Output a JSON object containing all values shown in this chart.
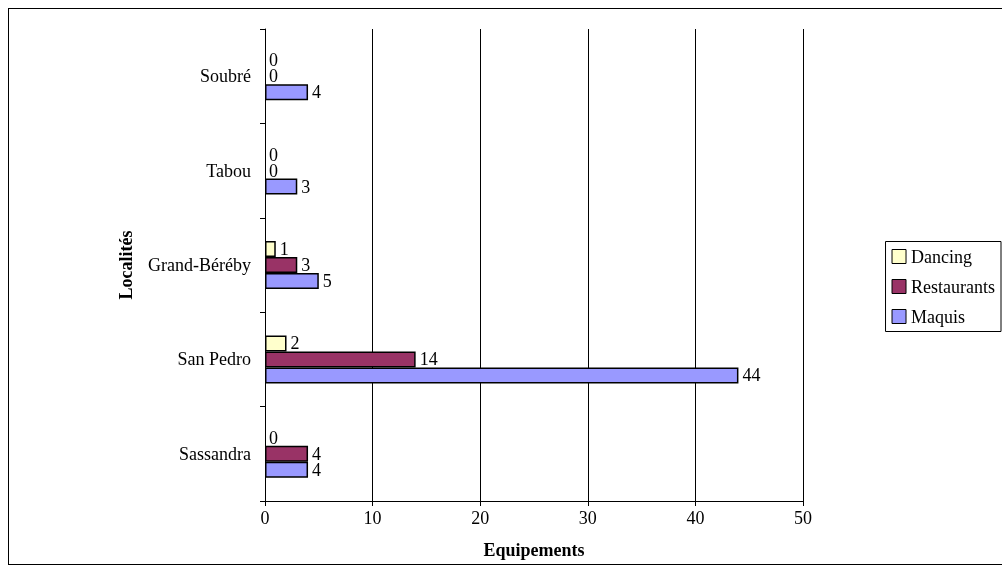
{
  "chart_data": {
    "type": "bar",
    "orientation": "horizontal",
    "xlabel": "Equipements",
    "ylabel": "Localités",
    "categories": [
      "Soubré",
      "Tabou",
      "Grand-Béréby",
      "San Pedro",
      "Sassandra"
    ],
    "series": [
      {
        "name": "Dancing",
        "color": "#ffffcc",
        "values": [
          0,
          0,
          1,
          2,
          0
        ]
      },
      {
        "name": "Restaurants",
        "color": "#993366",
        "values": [
          0,
          0,
          3,
          14,
          4
        ]
      },
      {
        "name": "Maquis",
        "color": "#9999ff",
        "values": [
          4,
          3,
          5,
          44,
          4
        ]
      }
    ],
    "xlim": [
      0,
      50
    ],
    "xticks": [
      0,
      10,
      20,
      30,
      40,
      50
    ],
    "grid": "x",
    "legend": "right",
    "data_labels": true
  }
}
